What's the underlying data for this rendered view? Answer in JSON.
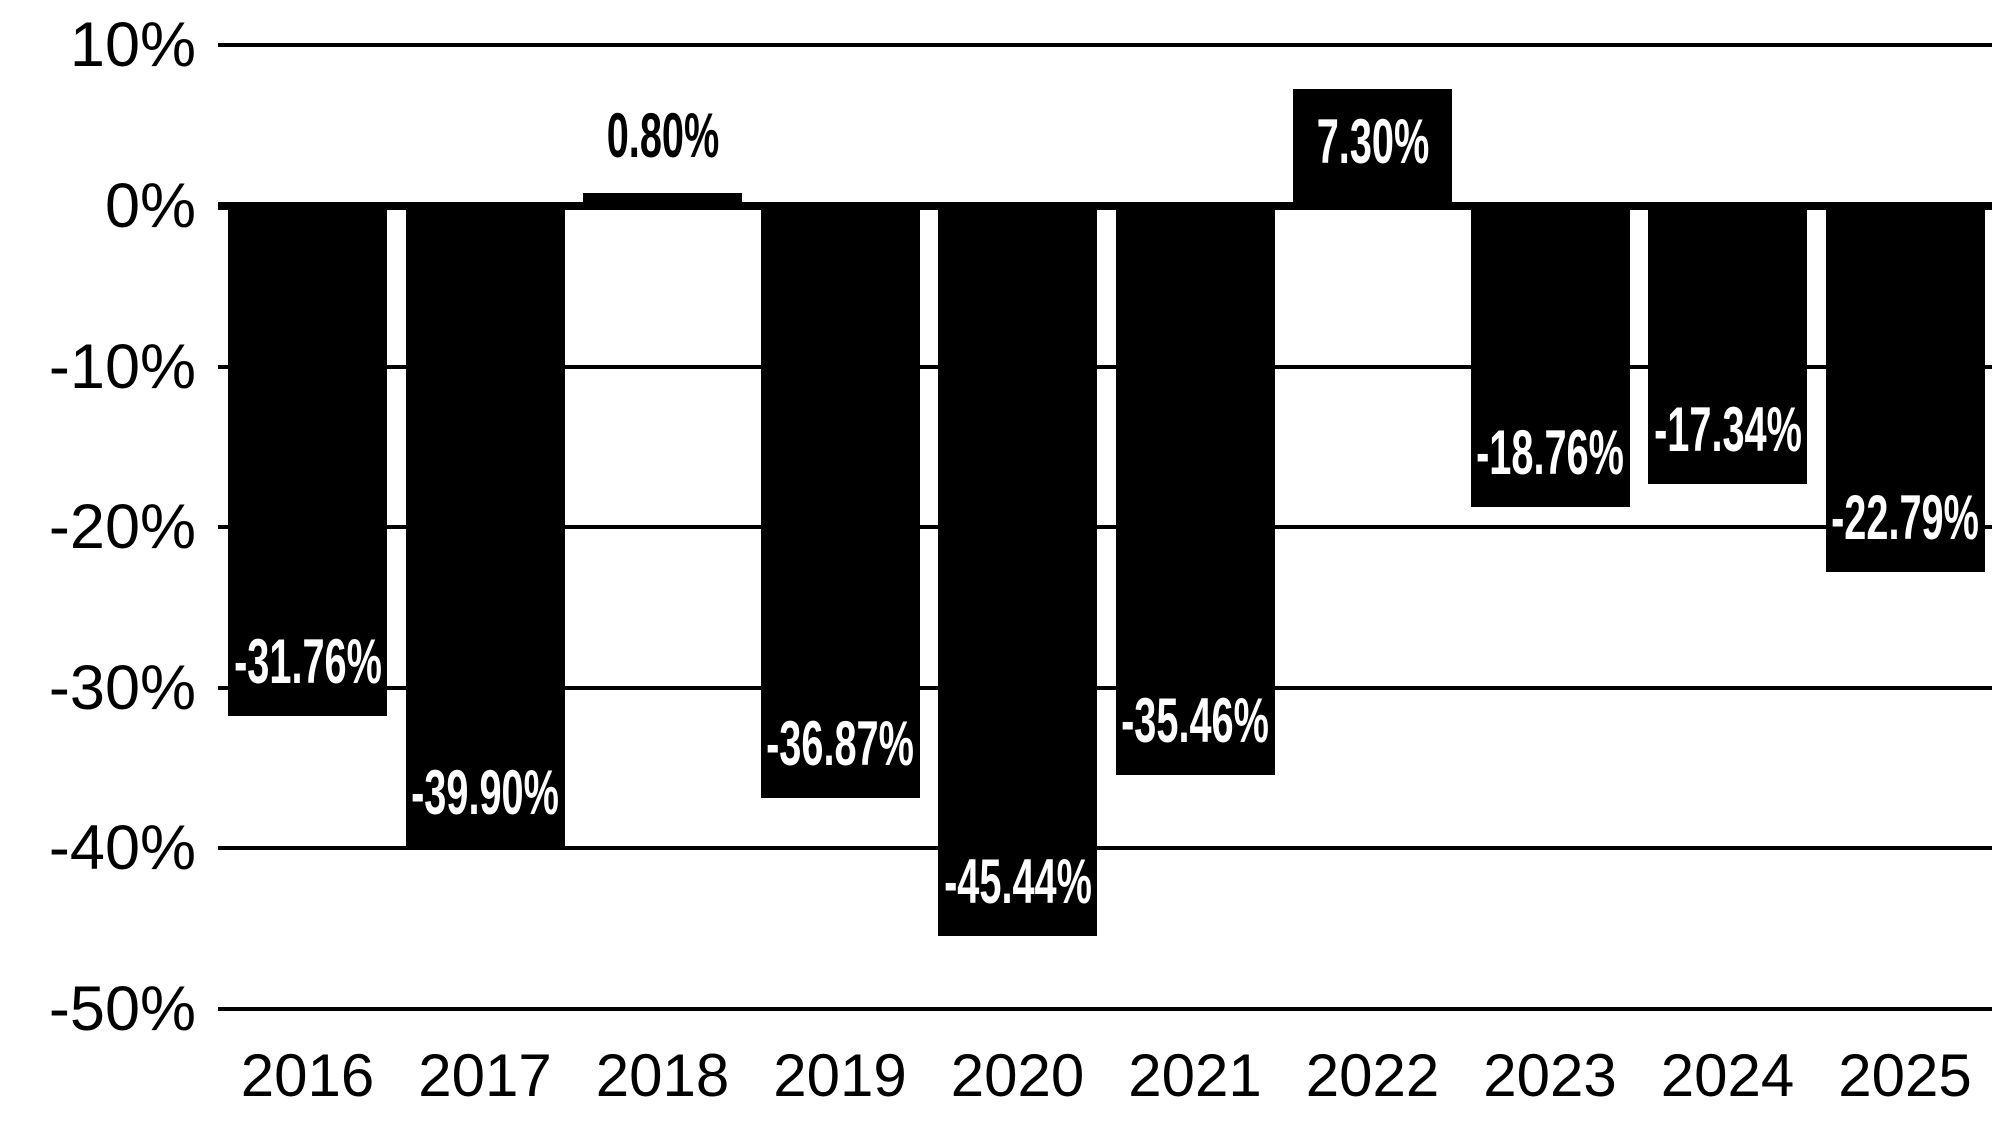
{
  "chart_data": {
    "type": "bar",
    "title": "",
    "xlabel": "",
    "ylabel": "",
    "categories": [
      "2016",
      "2017",
      "2018",
      "2019",
      "2020",
      "2021",
      "2022",
      "2023",
      "2024",
      "2025"
    ],
    "values": [
      -31.76,
      -39.9,
      0.8,
      -36.87,
      -45.44,
      -35.46,
      7.3,
      -18.76,
      -17.34,
      -22.79
    ],
    "data_labels": [
      "-31.76%",
      "-39.90%",
      "0.80%",
      "-36.87%",
      "-45.44%",
      "-35.46%",
      "7.30%",
      "-18.76%",
      "-17.34%",
      "-22.79%"
    ],
    "y_ticks": [
      {
        "value": 10,
        "label": "10%"
      },
      {
        "value": 0,
        "label": "0%"
      },
      {
        "value": -10,
        "label": "-10%"
      },
      {
        "value": -20,
        "label": "-20%"
      },
      {
        "value": -30,
        "label": "-30%"
      },
      {
        "value": -40,
        "label": "-40%"
      },
      {
        "value": -50,
        "label": "-50%"
      }
    ],
    "ylim": [
      -50,
      10
    ],
    "grid": "horizontal",
    "legend": "none",
    "colors": {
      "bar": "#000000",
      "label_inside": "#ffffff",
      "label_outside": "#000000",
      "axis": "#000000",
      "background": "#ffffff"
    }
  }
}
